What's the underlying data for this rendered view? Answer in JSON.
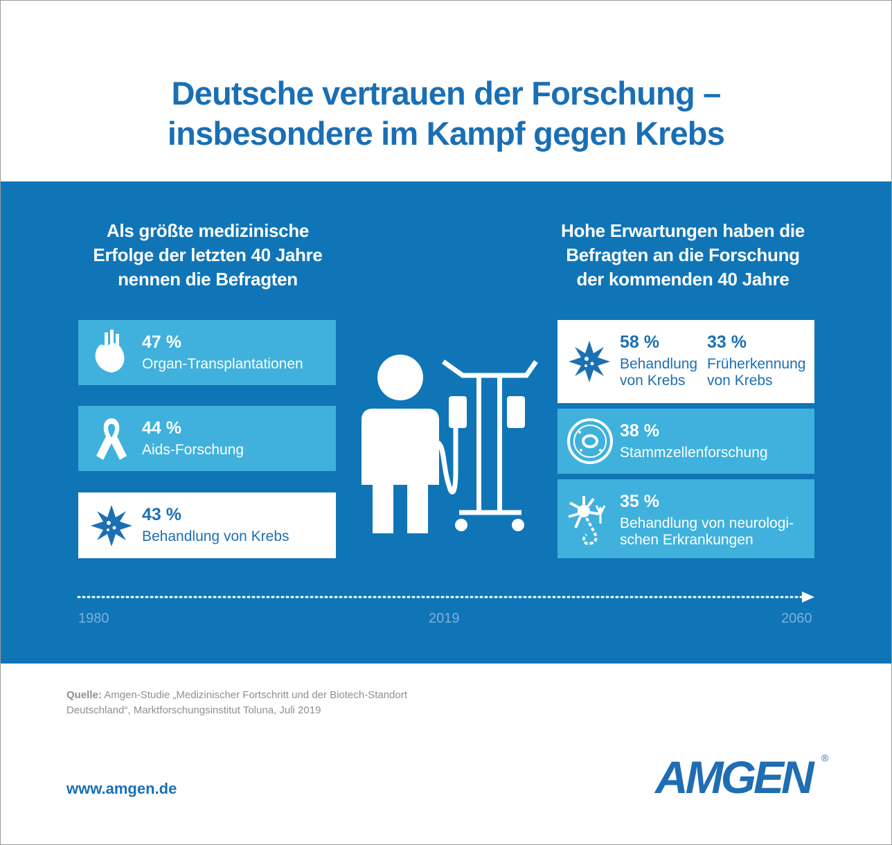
{
  "title": [
    "Deutsche vertrauen der Forschung –",
    "insbesondere im Kampf gegen Krebs"
  ],
  "left": {
    "heading": [
      "Als größte medizinische",
      "Erfolge der letzten 40 Jahre",
      "nennen die Befragten"
    ],
    "items": [
      {
        "percent": "47 %",
        "label": [
          "Organ-Transplantationen"
        ]
      },
      {
        "percent": "44 %",
        "label": [
          "Aids-Forschung"
        ]
      },
      {
        "percent": "43 %",
        "label": [
          "Behandlung von Krebs"
        ]
      }
    ]
  },
  "right": {
    "heading": [
      "Hohe Erwartungen haben die",
      "Befragten an die Forschung",
      "der kommenden 40 Jahre"
    ],
    "items": [
      {
        "percent": "58 %",
        "label": [
          "Behandlung",
          "von Krebs"
        ]
      },
      {
        "percent": "33 %",
        "label": [
          "Früherkennung",
          "von Krebs"
        ]
      },
      {
        "percent": "38 %",
        "label": [
          "Stammzellenforschung"
        ]
      },
      {
        "percent": "35 %",
        "label": [
          "Behandlung von neurologi-",
          "schen Erkrankungen"
        ]
      }
    ]
  },
  "timeline": [
    "1980",
    "2019",
    "2060"
  ],
  "source": {
    "prefix": "Quelle:",
    "text": [
      "Amgen-Studie „Medizinischer Fortschritt und der Biotech-Standort",
      "Deutschland“, Marktforschungsinstitut Toluna, Juli 2019"
    ]
  },
  "url": "www.amgen.de",
  "logo": {
    "name": "AMGEN",
    "mark": "®"
  }
}
